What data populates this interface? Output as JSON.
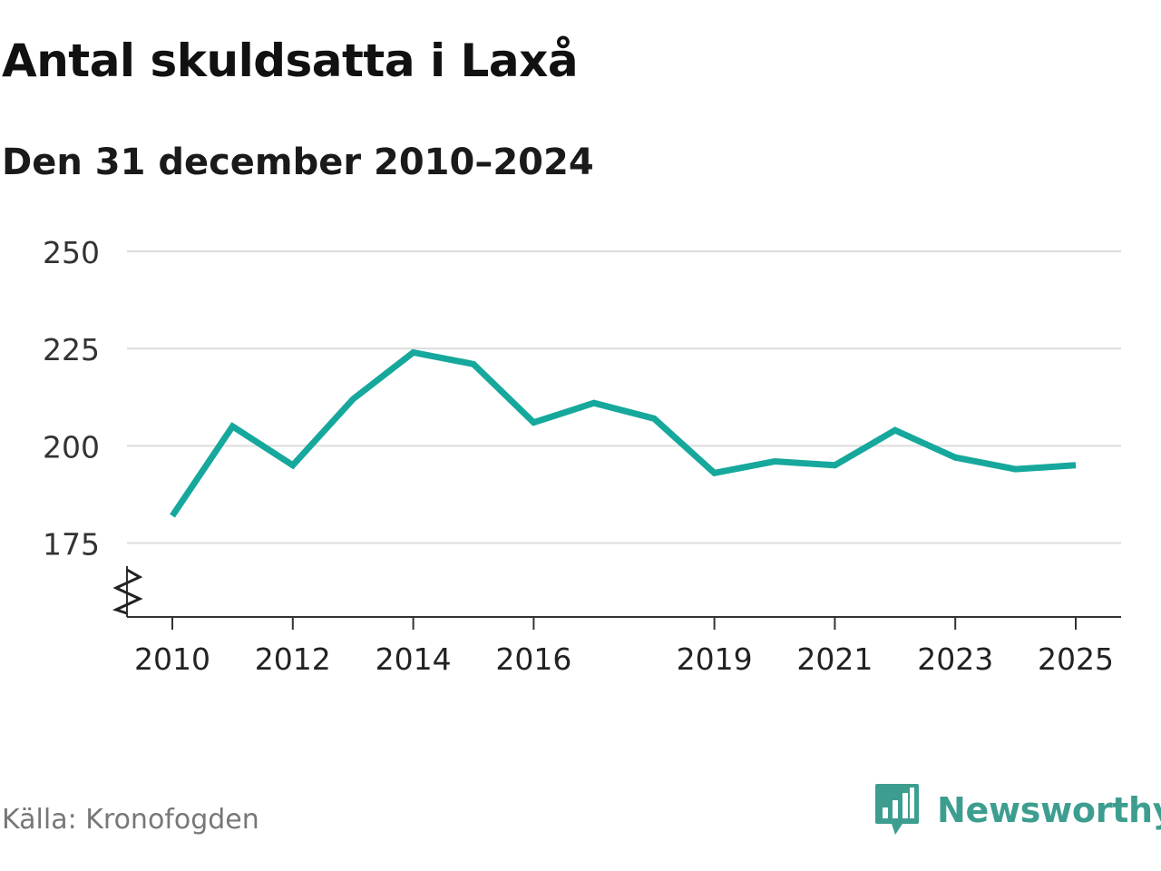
{
  "title": "Antal skuldsatta i Laxå",
  "subtitle": "Den 31 december 2010–2024",
  "source": "Källa: Kronofogden",
  "brand": {
    "name": "Newsworthy",
    "icon": "newsworthy-logo-icon"
  },
  "colors": {
    "line": "#16a89c",
    "brand": "#3d9e90",
    "grid": "#dddddd",
    "axis": "#333333"
  },
  "chart_data": {
    "type": "line",
    "title": "Antal skuldsatta i Laxå",
    "subtitle": "Den 31 december 2010–2024",
    "xlabel": "",
    "ylabel": "",
    "x": [
      2010,
      2011,
      2012,
      2013,
      2014,
      2015,
      2016,
      2017,
      2018,
      2019,
      2020,
      2021,
      2022,
      2023,
      2024,
      2025
    ],
    "series": [
      {
        "name": "Antal skuldsatta",
        "values": [
          182,
          205,
          195,
          212,
          224,
          221,
          206,
          211,
          207,
          193,
          196,
          195,
          204,
          197,
          194,
          195
        ]
      }
    ],
    "yticks": [
      175,
      200,
      225,
      250
    ],
    "xticks": [
      2010,
      2012,
      2014,
      2016,
      2019,
      2021,
      2023,
      2025
    ],
    "ylim": [
      156,
      250
    ],
    "xlim": [
      2010,
      2025
    ],
    "axis_break": true,
    "grid": true
  }
}
